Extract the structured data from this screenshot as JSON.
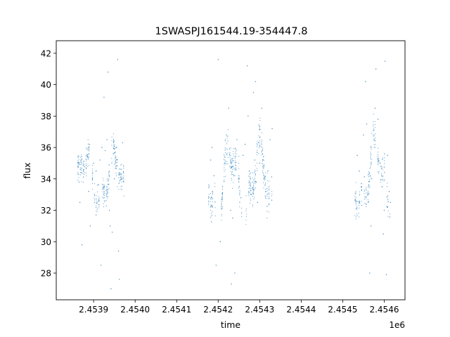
{
  "chart_data": {
    "type": "scatter",
    "title": "1SWASPJ161544.19-354447.8",
    "xlabel": "time",
    "ylabel": "flux",
    "x_offset_label": "1e6",
    "xlim": [
      2453810,
      2454650
    ],
    "ylim": [
      26.3,
      42.8
    ],
    "x_ticks": [
      2453900,
      2454000,
      2454100,
      2454200,
      2454300,
      2454400,
      2454500,
      2454600
    ],
    "x_tick_labels": [
      "2.4539",
      "2.4540",
      "2.4541",
      "2.4542",
      "2.4543",
      "2.4544",
      "2.4545",
      "2.4546"
    ],
    "y_ticks": [
      28,
      30,
      32,
      34,
      36,
      38,
      40,
      42
    ],
    "y_tick_labels": [
      "28",
      "30",
      "32",
      "34",
      "36",
      "38",
      "40",
      "42"
    ],
    "grid": false,
    "marker_color": "#1f77b4",
    "clusters": [
      {
        "x_range": [
          2453860,
          2453975
        ],
        "y_range": [
          32.2,
          37.2
        ],
        "outlier_y_range": [
          27.0,
          41.6
        ]
      },
      {
        "x_range": [
          2454175,
          2454330
        ],
        "y_range": [
          31.5,
          38.0
        ],
        "outlier_y_range": [
          27.1,
          41.6
        ]
      },
      {
        "x_range": [
          2454530,
          2454615
        ],
        "y_range": [
          32.0,
          38.5
        ],
        "outlier_y_range": [
          27.9,
          41.5
        ]
      }
    ],
    "series": [
      {
        "values": [
          [
            2453865,
            33.8
          ],
          [
            2453867,
            32.5
          ],
          [
            2453868,
            34.6
          ],
          [
            2453872,
            29.8
          ],
          [
            2453885,
            35.4
          ],
          [
            2453888,
            33.2
          ],
          [
            2453890,
            36.2
          ],
          [
            2453892,
            31.0
          ],
          [
            2453900,
            35.0
          ],
          [
            2453902,
            33.0
          ],
          [
            2453906,
            34.5
          ],
          [
            2453910,
            33.6
          ],
          [
            2453915,
            35.2
          ],
          [
            2453918,
            28.5
          ],
          [
            2453920,
            36.0
          ],
          [
            2453925,
            39.2
          ],
          [
            2453928,
            35.8
          ],
          [
            2453932,
            36.5
          ],
          [
            2453935,
            40.8
          ],
          [
            2453938,
            32.0
          ],
          [
            2453940,
            31.0
          ],
          [
            2453942,
            27.0
          ],
          [
            2453945,
            30.6
          ],
          [
            2453950,
            34.0
          ],
          [
            2453955,
            36.0
          ],
          [
            2453958,
            41.6
          ],
          [
            2453960,
            29.4
          ],
          [
            2453962,
            27.6
          ],
          [
            2453970,
            36.3
          ],
          [
            2454178,
            33.5
          ],
          [
            2454182,
            35.2
          ],
          [
            2454185,
            36.0
          ],
          [
            2454190,
            34.2
          ],
          [
            2454195,
            28.5
          ],
          [
            2454200,
            41.6
          ],
          [
            2454205,
            30.0
          ],
          [
            2454210,
            33.0
          ],
          [
            2454215,
            35.0
          ],
          [
            2454220,
            36.8
          ],
          [
            2454225,
            38.5
          ],
          [
            2454230,
            32.0
          ],
          [
            2454232,
            27.3
          ],
          [
            2454235,
            31.5
          ],
          [
            2454238,
            34.2
          ],
          [
            2454240,
            28.0
          ],
          [
            2454245,
            36.5
          ],
          [
            2454250,
            34.0
          ],
          [
            2454255,
            32.8
          ],
          [
            2454260,
            35.5
          ],
          [
            2454265,
            36.2
          ],
          [
            2454270,
            41.2
          ],
          [
            2454272,
            38.0
          ],
          [
            2454275,
            34.5
          ],
          [
            2454280,
            33.0
          ],
          [
            2454285,
            39.5
          ],
          [
            2454288,
            35.2
          ],
          [
            2454290,
            40.2
          ],
          [
            2454292,
            33.8
          ],
          [
            2454295,
            32.5
          ],
          [
            2454300,
            35.0
          ],
          [
            2454305,
            38.5
          ],
          [
            2454310,
            34.0
          ],
          [
            2454315,
            33.2
          ],
          [
            2454320,
            34.5
          ],
          [
            2454325,
            36.5
          ],
          [
            2454330,
            37.2
          ],
          [
            2454530,
            32.7
          ],
          [
            2454535,
            35.5
          ],
          [
            2454540,
            34.5
          ],
          [
            2454545,
            33.5
          ],
          [
            2454550,
            36.8
          ],
          [
            2454555,
            40.2
          ],
          [
            2454558,
            37.5
          ],
          [
            2454560,
            33.0
          ],
          [
            2454565,
            28.0
          ],
          [
            2454568,
            31.0
          ],
          [
            2454570,
            34.0
          ],
          [
            2454575,
            36.5
          ],
          [
            2454578,
            38.5
          ],
          [
            2454580,
            41.0
          ],
          [
            2454585,
            37.8
          ],
          [
            2454590,
            35.0
          ],
          [
            2454595,
            33.5
          ],
          [
            2454598,
            30.5
          ],
          [
            2454600,
            32.0
          ],
          [
            2454602,
            41.5
          ],
          [
            2454605,
            27.9
          ],
          [
            2454608,
            35.5
          ],
          [
            2454612,
            33.2
          ],
          [
            2454615,
            32.5
          ]
        ]
      }
    ]
  }
}
